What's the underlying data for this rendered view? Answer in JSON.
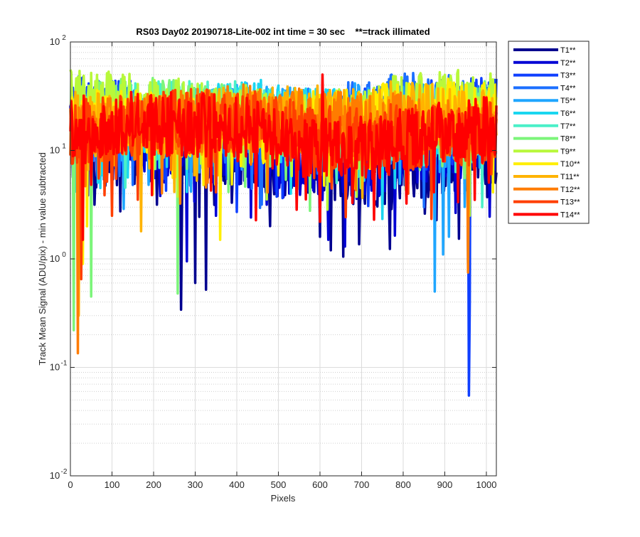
{
  "chart_data": {
    "type": "line",
    "title": "RS03 Day02 20190718-Lite-002 int time = 30 sec    **=track illimated",
    "xlabel": "Pixels",
    "ylabel": "Track Mean Signal (ADU/pix) - min value subtracted",
    "xlim": [
      0,
      1024
    ],
    "ylim": [
      0.01,
      100
    ],
    "yscale": "log",
    "grid": true,
    "legend_position": "outside-right",
    "x_ticks": [
      "0",
      "100",
      "200",
      "300",
      "400",
      "500",
      "600",
      "700",
      "800",
      "900",
      "1000"
    ],
    "y_tick_labels": [
      {
        "base": "10",
        "exp": "-2"
      },
      {
        "base": "10",
        "exp": "-1"
      },
      {
        "base": "10",
        "exp": "0"
      },
      {
        "base": "10",
        "exp": "1"
      },
      {
        "base": "10",
        "exp": "2"
      }
    ],
    "series": [
      {
        "name": "T1**",
        "color": "#00008f",
        "level": 9.5,
        "amp": 0.35,
        "drops": [
          [
            265,
            0.34
          ],
          [
            300,
            0.6
          ],
          [
            325,
            0.52
          ],
          [
            600,
            1.6
          ],
          [
            625,
            1.2
          ],
          [
            655,
            1.05
          ]
        ]
      },
      {
        "name": "T2**",
        "color": "#0000d4",
        "level": 11,
        "amp": 0.35,
        "drops": [
          [
            280,
            0.95
          ],
          [
            350,
            2.5
          ],
          [
            660,
            1.3
          ],
          [
            620,
            1.5
          ]
        ]
      },
      {
        "name": "T3**",
        "color": "#0f3fff",
        "level": 21,
        "amp": 0.3,
        "drops": [
          [
            958,
            0.055
          ],
          [
            960,
            0.4
          ]
        ]
      },
      {
        "name": "T4**",
        "color": "#1b6fff",
        "level": 22,
        "amp": 0.3,
        "drops": [
          [
            955,
            0.9
          ],
          [
            850,
            3.0
          ]
        ]
      },
      {
        "name": "T5**",
        "color": "#1fa6ff",
        "level": 20,
        "amp": 0.3,
        "drops": [
          [
            875,
            0.5
          ],
          [
            895,
            1.1
          ],
          [
            910,
            1.6
          ]
        ]
      },
      {
        "name": "T6**",
        "color": "#1ad6f0",
        "level": 19,
        "amp": 0.3,
        "drops": [
          [
            530,
            4.0
          ],
          [
            780,
            4.5
          ]
        ]
      },
      {
        "name": "T7**",
        "color": "#4af0c8",
        "level": 19,
        "amp": 0.3,
        "drops": [
          [
            640,
            5.0
          ],
          [
            990,
            3.0
          ]
        ]
      },
      {
        "name": "T8**",
        "color": "#7cf57a",
        "level": 20,
        "amp": 0.3,
        "drops": [
          [
            8,
            0.22
          ],
          [
            50,
            0.45
          ],
          [
            258,
            0.48
          ]
        ]
      },
      {
        "name": "T9**",
        "color": "#b8f83a",
        "level": 24,
        "amp": 0.3,
        "drops": [
          [
            960,
            2.5
          ]
        ]
      },
      {
        "name": "T10**",
        "color": "#ffee00",
        "level": 20,
        "amp": 0.3,
        "drops": [
          [
            30,
            0.9
          ],
          [
            360,
            1.5
          ],
          [
            40,
            2.0
          ]
        ]
      },
      {
        "name": "T11**",
        "color": "#ffb300",
        "level": 20,
        "amp": 0.3,
        "drops": [
          [
            20,
            0.3
          ],
          [
            170,
            1.8
          ]
        ]
      },
      {
        "name": "T12**",
        "color": "#ff7c00",
        "level": 18,
        "amp": 0.3,
        "drops": [
          [
            18,
            0.135
          ],
          [
            955,
            0.75
          ]
        ]
      },
      {
        "name": "T13**",
        "color": "#ff3f00",
        "level": 16,
        "amp": 0.3,
        "drops": [
          [
            25,
            0.65
          ],
          [
            100,
            2.5
          ]
        ]
      },
      {
        "name": "T14**",
        "color": "#ff0000",
        "level": 15,
        "amp": 0.3,
        "drops": [
          [
            605,
            50
          ],
          [
            30,
            1.5
          ],
          [
            600,
            2.2
          ]
        ]
      }
    ]
  }
}
